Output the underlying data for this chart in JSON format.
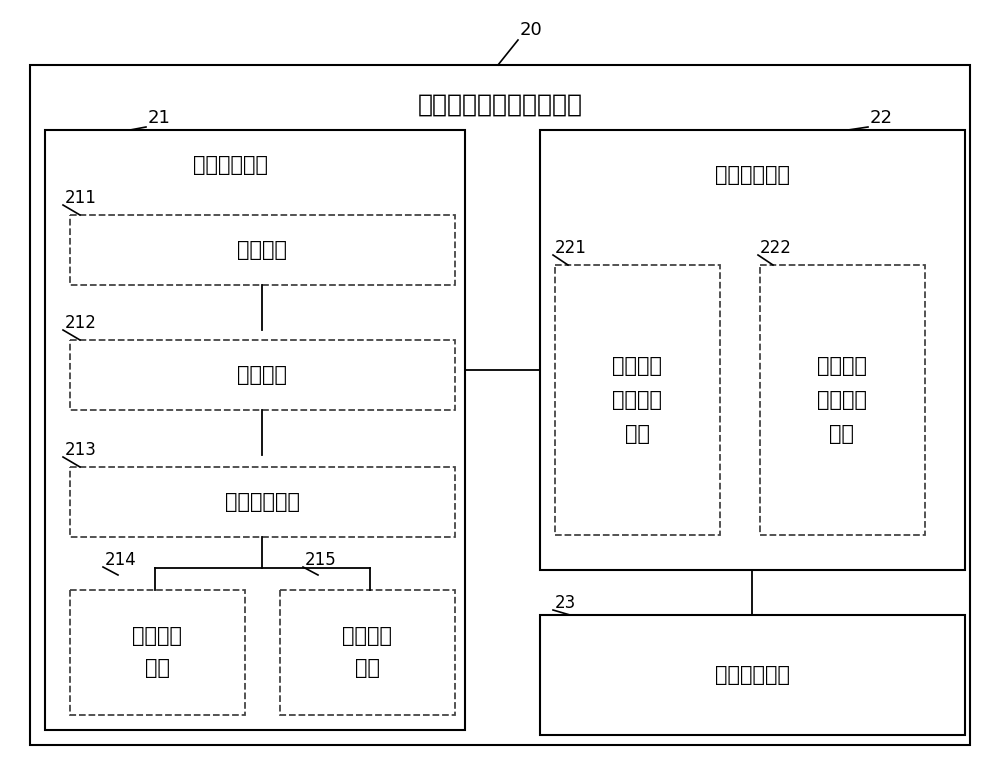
{
  "title": "电压增强型读出放大电路",
  "label_20": "20",
  "label_21": "21",
  "label_22": "22",
  "label_23": "23",
  "label_211": "211",
  "label_212": "212",
  "label_213": "213",
  "label_214": "214",
  "label_215": "215",
  "label_221": "221",
  "label_222": "222",
  "text_store": "存储读取电路",
  "text_divider": "分压放大电路",
  "text_load": "负载电路",
  "text_clamp": "钳位电路",
  "text_bitline": "位线选择电路",
  "text_data_unit": "数据单元\n电路",
  "text_ref_unit": "参考单元\n电路",
  "text_data_div": "数据电压\n分压放大\n电路",
  "text_ref_div": "参考电压\n分压放大\n电路",
  "text_compare": "比较放大电路",
  "bg_color": "#ffffff",
  "box_color": "#000000",
  "line_color": "#000000",
  "font_size_title": 18,
  "font_size_label": 13,
  "font_size_text": 15,
  "font_size_small": 12
}
